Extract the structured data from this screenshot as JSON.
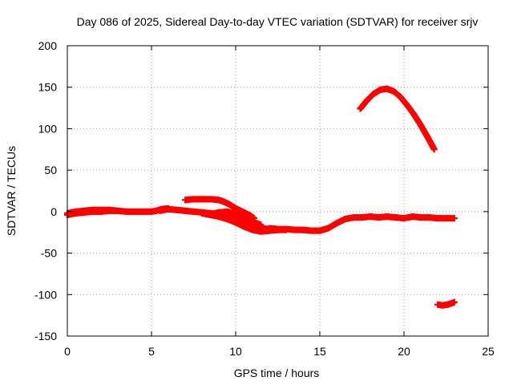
{
  "chart_data": {
    "type": "scatter",
    "title": "Day 086 of 2025, Sidereal Day-to-day VTEC variation (SDTVAR) for receiver srjv",
    "xlabel": "GPS time / hours",
    "ylabel": "SDTVAR / TECUs",
    "xlim": [
      0,
      25
    ],
    "ylim": [
      -150,
      200
    ],
    "xticks": [
      0,
      5,
      10,
      15,
      20,
      25
    ],
    "yticks": [
      -150,
      -100,
      -50,
      0,
      50,
      100,
      150,
      200
    ],
    "grid": true,
    "legend": "none",
    "series_color": "#ff0000",
    "series": [
      {
        "name": "arc-1",
        "x": [
          0,
          0.5,
          1,
          1.5,
          2,
          2.5,
          3,
          3.5,
          4,
          4.5,
          5,
          5.3,
          5.6,
          6.0
        ],
        "y": [
          -2,
          0,
          1,
          2,
          2,
          2,
          1,
          0,
          0,
          0,
          0,
          1,
          3,
          4
        ]
      },
      {
        "name": "arc-2",
        "x": [
          0,
          0.5,
          1,
          1.5,
          2,
          2.5,
          3
        ],
        "y": [
          -4,
          -2,
          -1,
          0,
          0,
          1,
          1
        ]
      },
      {
        "name": "arc-3",
        "x": [
          5.5,
          6,
          6.5,
          7,
          7.5,
          8,
          8.5,
          9,
          9.5,
          10,
          10.5,
          11,
          11.5,
          12
        ],
        "y": [
          1,
          3,
          2,
          1,
          0,
          -1,
          -2,
          -4,
          -6,
          -10,
          -14,
          -18,
          -20,
          -21
        ]
      },
      {
        "name": "arc-4",
        "x": [
          7,
          7.5,
          8,
          8.5,
          9,
          9.3,
          9.6,
          10,
          10.4,
          10.8,
          11.1
        ],
        "y": [
          14,
          15,
          15,
          15,
          14,
          12,
          9,
          4,
          0,
          -4,
          -8
        ]
      },
      {
        "name": "arc-5",
        "x": [
          8,
          8.5,
          9,
          9.5,
          10,
          10.5,
          11,
          11.5,
          12,
          12.5,
          13
        ],
        "y": [
          -2,
          -4,
          -6,
          -9,
          -13,
          -18,
          -22,
          -24,
          -23,
          -22,
          -22
        ]
      },
      {
        "name": "arc-6",
        "x": [
          8.5,
          9,
          9.5,
          10,
          10.5,
          11,
          11.5
        ],
        "y": [
          -3,
          -1,
          0,
          -3,
          -7,
          -12,
          -16
        ]
      },
      {
        "name": "arc-7",
        "x": [
          12,
          12.5,
          13,
          13.5,
          14,
          14.5,
          15,
          15.5,
          16,
          16.5,
          17,
          17.5,
          18,
          18.5,
          19,
          19.5,
          20,
          20.5,
          21,
          21.5,
          22,
          22.5,
          23
        ],
        "y": [
          -20,
          -21,
          -21,
          -22,
          -22,
          -23,
          -23,
          -20,
          -14,
          -9,
          -7,
          -7,
          -6,
          -7,
          -6,
          -7,
          -8,
          -6,
          -7,
          -7,
          -8,
          -8,
          -8
        ]
      },
      {
        "name": "arc-8",
        "x": [
          17.4,
          17.8,
          18.2,
          18.6,
          19.0,
          19.4,
          19.8,
          20.2,
          20.6,
          21.0,
          21.4,
          21.8
        ],
        "y": [
          124,
          134,
          142,
          147,
          148,
          145,
          138,
          128,
          117,
          104,
          90,
          75
        ]
      },
      {
        "name": "arc-9",
        "x": [
          22.0,
          22.3,
          22.6,
          22.9,
          23.0
        ],
        "y": [
          -112,
          -113,
          -112,
          -110,
          -109
        ]
      }
    ]
  }
}
